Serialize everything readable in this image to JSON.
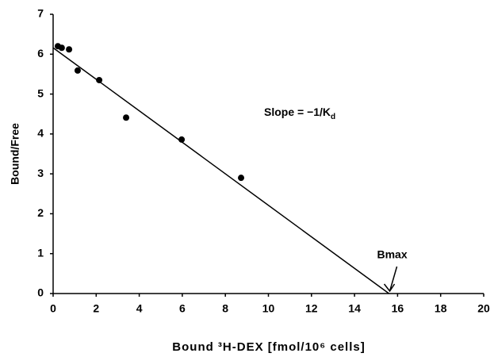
{
  "chart_data": {
    "type": "scatter",
    "x_label": "Bound ³H-DEX [fmol/10⁶ cells]",
    "y_label": "Bound/Free",
    "x": [
      0.22,
      0.4,
      0.74,
      1.14,
      2.14,
      3.39,
      5.97,
      8.73
    ],
    "values": [
      6.2,
      6.16,
      6.12,
      5.59,
      5.35,
      4.41,
      3.86,
      2.9
    ],
    "color": "#000000",
    "xlim": [
      0,
      20
    ],
    "ylim": [
      0,
      7
    ],
    "xticks": [
      0,
      2,
      4,
      6,
      8,
      10,
      12,
      14,
      16,
      18,
      20
    ],
    "yticks": [
      0,
      1,
      2,
      3,
      4,
      5,
      6,
      7
    ],
    "fit_line": {
      "x": [
        0,
        15.6
      ],
      "y": [
        6.16,
        0
      ]
    },
    "slope_label": {
      "text": "Slope  =  −1/K",
      "subscript": "d"
    },
    "bmax": {
      "label": "Bmax",
      "x": 15.6,
      "y": 0
    }
  }
}
